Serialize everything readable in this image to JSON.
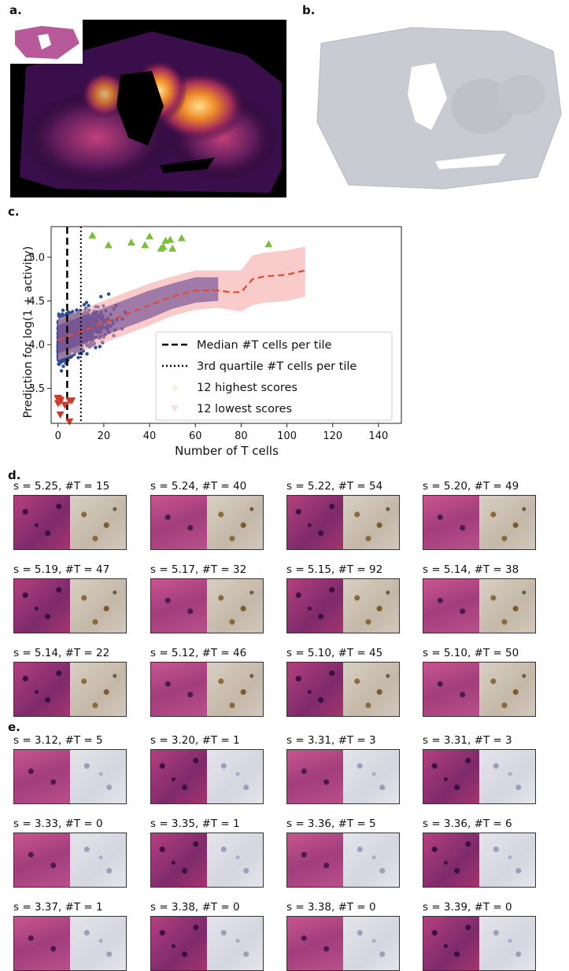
{
  "panels": {
    "a": "a.",
    "b": "b.",
    "c": "c.",
    "d": "d.",
    "e": "e."
  },
  "chart_data": {
    "type": "scatter",
    "xlabel": "Number of T cells",
    "ylabel": "Prediction for log(1 + activity)",
    "xlim": [
      -3,
      150
    ],
    "ylim": [
      3.1,
      5.35
    ],
    "xticks": [
      0,
      20,
      40,
      60,
      80,
      100,
      120,
      140
    ],
    "yticks": [
      3.5,
      4.0,
      4.5,
      5.0
    ],
    "median_tcells": 4,
    "q3_tcells": 10,
    "trend": {
      "x": [
        0,
        10,
        20,
        30,
        40,
        50,
        60,
        70,
        75,
        80,
        85,
        90,
        100,
        108
      ],
      "mean": [
        4.05,
        4.15,
        4.25,
        4.35,
        4.45,
        4.55,
        4.62,
        4.62,
        4.6,
        4.6,
        4.75,
        4.78,
        4.8,
        4.85
      ],
      "lower": [
        3.82,
        3.92,
        4.02,
        4.12,
        4.22,
        4.33,
        4.4,
        4.42,
        4.4,
        4.38,
        4.45,
        4.48,
        4.5,
        4.55
      ],
      "upper": [
        4.3,
        4.4,
        4.5,
        4.6,
        4.7,
        4.78,
        4.85,
        4.85,
        4.85,
        4.85,
        5.02,
        5.05,
        5.08,
        5.12
      ]
    },
    "highest_scores": {
      "x": [
        15,
        40,
        54,
        49,
        47,
        32,
        92,
        38,
        22,
        46,
        45,
        50
      ],
      "y": [
        5.25,
        5.24,
        5.22,
        5.2,
        5.19,
        5.17,
        5.15,
        5.14,
        5.14,
        5.12,
        5.1,
        5.1
      ]
    },
    "lowest_scores": {
      "x": [
        5,
        1,
        3,
        3,
        0,
        1,
        5,
        6,
        1,
        0,
        0,
        0
      ],
      "y": [
        3.12,
        3.2,
        3.31,
        3.31,
        3.33,
        3.35,
        3.36,
        3.36,
        3.37,
        3.38,
        3.38,
        3.39
      ]
    },
    "legend": [
      {
        "label": "Median #T cells per tile",
        "style": "dashed"
      },
      {
        "label": "3rd quartile #T cells per tile",
        "style": "dotted"
      },
      {
        "label": "12 highest scores",
        "color": "#7cbf3a",
        "marker": "triangle-up"
      },
      {
        "label": "12 lowest scores",
        "color": "#d03a2a",
        "marker": "triangle-down"
      }
    ],
    "colors": {
      "scatter": "#2b4a9a",
      "trend": "#e04a30",
      "band": "#f4a0a0",
      "band_inner": "#5a3a8a"
    }
  },
  "tiles_d": [
    "s = 5.25, #T = 15",
    "s = 5.24, #T = 40",
    "s = 5.22, #T = 54",
    "s = 5.20, #T = 49",
    "s = 5.19, #T = 47",
    "s = 5.17, #T = 32",
    "s = 5.15, #T = 92",
    "s = 5.14, #T = 38",
    "s = 5.14, #T = 22",
    "s = 5.12, #T = 46",
    "s = 5.10, #T = 45",
    "s = 5.10, #T = 50"
  ],
  "tiles_e": [
    "s = 3.12, #T = 5",
    "s = 3.20, #T = 1",
    "s = 3.31, #T = 3",
    "s = 3.31, #T = 3",
    "s = 3.33, #T = 0",
    "s = 3.35, #T = 1",
    "s = 3.36, #T = 5",
    "s = 3.36, #T = 6",
    "s = 3.37, #T = 1",
    "s = 3.38, #T = 0",
    "s = 3.38, #T = 0",
    "s = 3.39, #T = 0"
  ]
}
